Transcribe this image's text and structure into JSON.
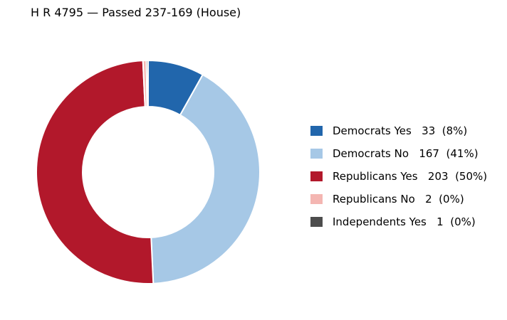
{
  "title": "H R 4795 — Passed 237-169 (House)",
  "chart_data": {
    "type": "pie",
    "donut": true,
    "title": "H R 4795 — Passed 237-169 (House)",
    "legend_position": "right",
    "slices": [
      {
        "label": "Democrats Yes",
        "value": 33,
        "percent_label": "(8%)",
        "color": "#2166ac"
      },
      {
        "label": "Democrats No",
        "value": 167,
        "percent_label": "(41%)",
        "color": "#a6c8e6"
      },
      {
        "label": "Republicans Yes",
        "value": 203,
        "percent_label": "(50%)",
        "color": "#b2182b"
      },
      {
        "label": "Republicans No",
        "value": 2,
        "percent_label": "(0%)",
        "color": "#f4b6b2"
      },
      {
        "label": "Independents Yes",
        "value": 1,
        "percent_label": "(0%)",
        "color": "#4d4d4d"
      }
    ]
  },
  "legend": [
    {
      "text": "Democrats Yes   33  (8%)"
    },
    {
      "text": "Democrats No   167  (41%)"
    },
    {
      "text": "Republicans Yes   203  (50%)"
    },
    {
      "text": "Republicans No   2  (0%)"
    },
    {
      "text": "Independents Yes   1  (0%)"
    }
  ]
}
